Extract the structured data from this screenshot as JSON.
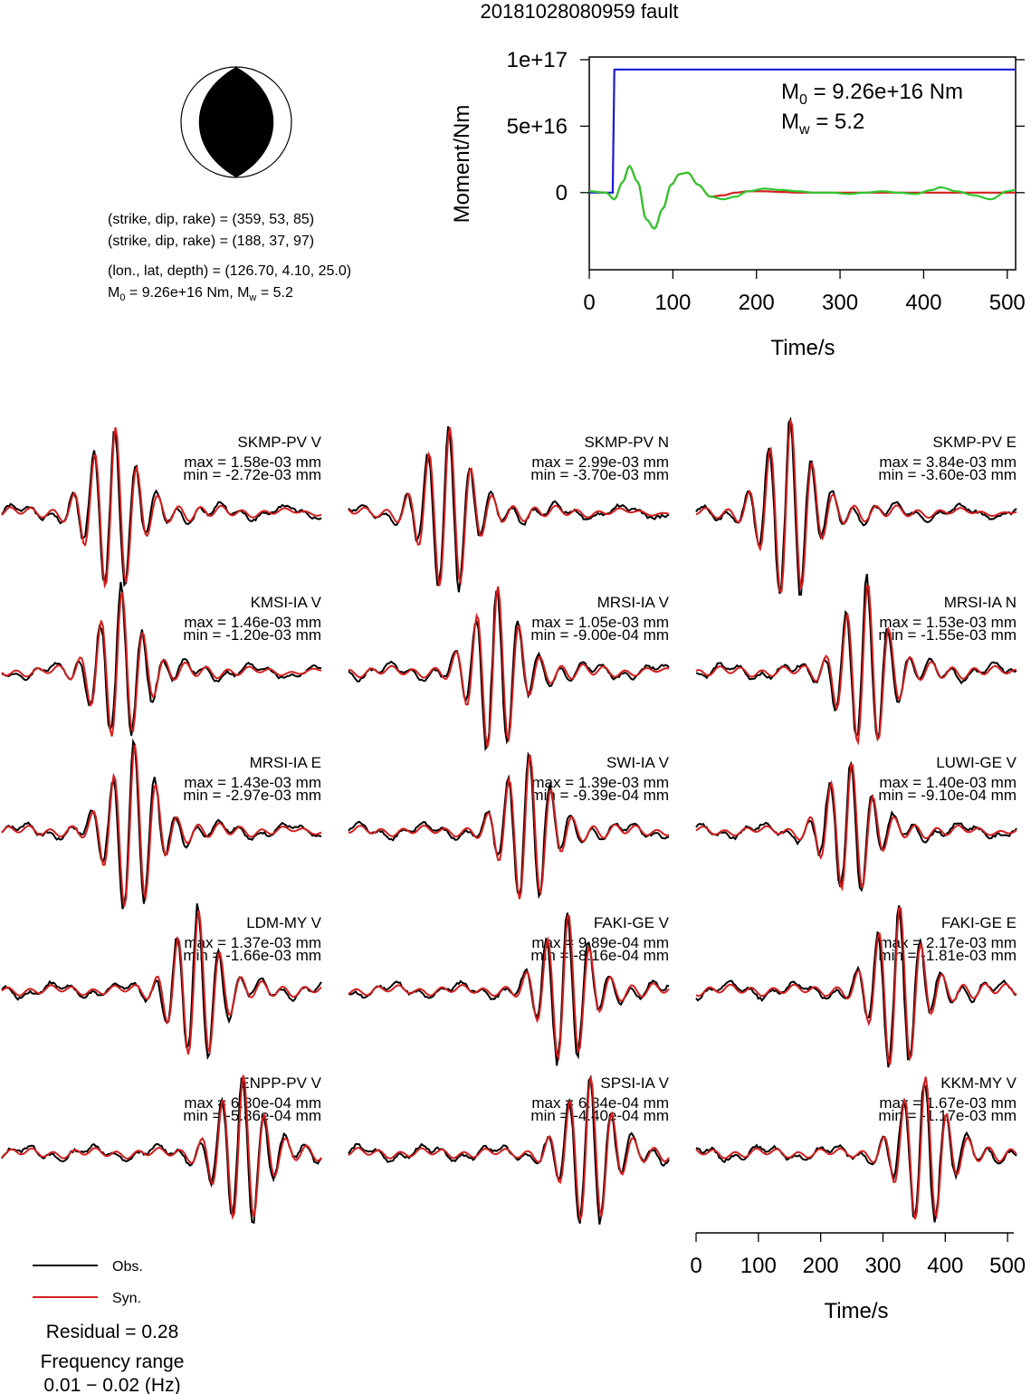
{
  "title": "20181028080959 fault",
  "mechanism": {
    "plane1": "(strike, dip, rake) = (359, 53, 85)",
    "plane2": "(strike, dip, rake) = (188, 37, 97)",
    "location": "(lon., lat, depth) = (126.70, 4.10, 25.0)",
    "moment_text": "M0 = 9.26e+16 Nm, Mw = 5.2",
    "moment_prefix": "M",
    "moment_sub": "0",
    "moment_mid": " = 9.26e+16 Nm, M",
    "mw_sub": "w",
    "mw_value": " = 5.2"
  },
  "stf_panel": {
    "ylabel": "Moment/Nm",
    "xlabel": "Time/s",
    "annot_m0_prefix": "M",
    "annot_m0_sub": "0",
    "annot_m0_value": " = 9.26e+16 Nm",
    "annot_mw_prefix": "M",
    "annot_mw_sub": "w",
    "annot_mw_value": " = 5.2",
    "yticks": [
      "0",
      "5e+16",
      "1e+17"
    ],
    "xticks": [
      "0",
      "100",
      "200",
      "300",
      "400",
      "500"
    ],
    "colors": {
      "moment": "#1a1ad6",
      "a": "#d41f1f",
      "b": "#2ec82e"
    }
  },
  "waveforms": [
    {
      "name": "SKMP-PV V",
      "max": "max = 1.58e-03 mm",
      "min": "min = -2.72e-03 mm"
    },
    {
      "name": "SKMP-PV N",
      "max": "max = 2.99e-03 mm",
      "min": "min = -3.70e-03 mm"
    },
    {
      "name": "SKMP-PV E",
      "max": "max = 3.84e-03 mm",
      "min": "min = -3.60e-03 mm"
    },
    {
      "name": "KMSI-IA V",
      "max": "max = 1.46e-03 mm",
      "min": "min = -1.20e-03 mm"
    },
    {
      "name": "MRSI-IA V",
      "max": "max = 1.05e-03 mm",
      "min": "min = -9.00e-04 mm"
    },
    {
      "name": "MRSI-IA N",
      "max": "max = 1.53e-03 mm",
      "min": "min = -1.55e-03 mm"
    },
    {
      "name": "MRSI-IA E",
      "max": "max = 1.43e-03 mm",
      "min": "min = -2.97e-03 mm"
    },
    {
      "name": "SWI-IA V",
      "max": "max = 1.39e-03 mm",
      "min": "min = -9.39e-04 mm"
    },
    {
      "name": "LUWI-GE V",
      "max": "max = 1.40e-03 mm",
      "min": "min = -9.10e-04 mm"
    },
    {
      "name": "LDM-MY V",
      "max": "max = 1.37e-03 mm",
      "min": "min = -1.66e-03 mm"
    },
    {
      "name": "FAKI-GE V",
      "max": "max = 9.89e-04 mm",
      "min": "min = -8.16e-04 mm"
    },
    {
      "name": "FAKI-GE E",
      "max": "max = 2.17e-03 mm",
      "min": "min = -1.81e-03 mm"
    },
    {
      "name": "ENPP-PV V",
      "max": "max = 6.80e-04 mm",
      "min": "min = -5.86e-04 mm"
    },
    {
      "name": "SPSI-IA V",
      "max": "max = 6.84e-04 mm",
      "min": "min = -4.40e-04 mm"
    },
    {
      "name": "KKM-MY V",
      "max": "max = 1.67e-03 mm",
      "min": "min = -1.17e-03 mm"
    }
  ],
  "legend": {
    "obs": "Obs.",
    "syn": "Syn.",
    "obs_color": "#000000",
    "syn_color": "#d41f1f"
  },
  "residual": "Residual = 0.28",
  "frequency_label": "Frequency range",
  "frequency_value": "0.01 − 0.02 (Hz)",
  "bottom_axis": {
    "xlabel": "Time/s",
    "xticks": [
      "0",
      "100",
      "200",
      "300",
      "400",
      "500"
    ]
  },
  "chart_data": [
    {
      "type": "line",
      "title": "",
      "xlabel": "Time/s",
      "ylabel": "Moment/Nm",
      "xlim": [
        0,
        510
      ],
      "ylim": [
        -5.8e+16,
        1.02e+17
      ],
      "series": [
        {
          "x": [
            0,
            28,
            30,
            510
          ],
          "y": [
            0,
            0,
            9.26e+16,
            9.26e+16
          ]
        },
        {
          "x": [
            0,
            20,
            30,
            40,
            48,
            58,
            68,
            78,
            88,
            98,
            108,
            118,
            130,
            145,
            160,
            175,
            190,
            210,
            230,
            250,
            270,
            290,
            310,
            330,
            350,
            370,
            390,
            410,
            420,
            440,
            460,
            480,
            500,
            510
          ],
          "y": [
            1000000000000000.0,
            0,
            -5000000000000000.0,
            8000000000000000.0,
            2e+16,
            8000000000000000.0,
            -2e+16,
            -2.7e+16,
            -1.2e+16,
            6000000000000000.0,
            1.4e+16,
            1.5e+16,
            6000000000000000.0,
            -3000000000000000.0,
            -5000000000000000.0,
            -3000000000000000.0,
            1000000000000000.0,
            3000000000000000.0,
            2000000000000000.0,
            1000000000000000.0,
            0,
            0,
            -1000000000000000.0,
            0,
            1000000000000000.0,
            0,
            -1000000000000000.0,
            2000000000000000.0,
            4000000000000000.0,
            1000000000000000.0,
            -2000000000000000.0,
            -5000000000000000.0,
            1000000000000000.0,
            2000000000000000.0
          ]
        },
        {
          "x": [
            0,
            20,
            30,
            40,
            48,
            58,
            68,
            78,
            88,
            98,
            108,
            118,
            130,
            145,
            160,
            175,
            190,
            210,
            230,
            250,
            270,
            300,
            350,
            400,
            450,
            510
          ],
          "y": [
            1000000000000000.0,
            0,
            -5000000000000000.0,
            8000000000000000.0,
            2e+16,
            8000000000000000.0,
            -2e+16,
            -2.7e+16,
            -1.2e+16,
            6000000000000000.0,
            1.4e+16,
            1.5e+16,
            6000000000000000.0,
            -3000000000000000.0,
            -2000000000000000.0,
            0,
            1000000000000000.0,
            1000000000000000.0,
            500000000000000.0,
            0,
            0,
            0,
            0,
            0,
            0,
            0
          ]
        }
      ]
    },
    {
      "type": "line",
      "title": "",
      "xlabel": "Time/s",
      "xlim": [
        0,
        510
      ],
      "series": [
        {
          "name": "Obs."
        },
        {
          "name": "Syn."
        }
      ]
    }
  ]
}
